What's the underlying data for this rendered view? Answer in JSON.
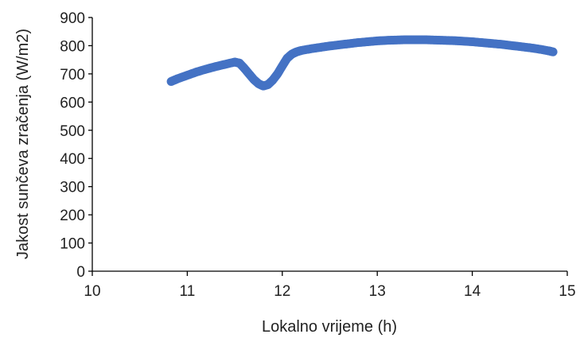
{
  "chart_data": {
    "type": "scatter",
    "title": "",
    "xlabel": "Lokalno vrijeme (h)",
    "ylabel": "Jakost sunčeva zračenja (W/m2)",
    "xlim": [
      10,
      15
    ],
    "ylim": [
      0,
      900
    ],
    "xticks": [
      10,
      11,
      12,
      13,
      14,
      15
    ],
    "yticks": [
      0,
      100,
      200,
      300,
      400,
      500,
      600,
      700,
      800,
      900
    ],
    "grid": false,
    "legend": "none",
    "marker_color": "#4472C4",
    "series": [
      {
        "x": [
          10.83,
          10.9,
          11.0,
          11.1,
          11.2,
          11.3,
          11.4,
          11.5,
          11.55,
          11.6,
          11.65,
          11.7,
          11.75,
          11.8,
          11.85,
          11.9,
          11.95,
          12.0,
          12.05,
          12.1,
          12.15,
          12.2,
          12.3,
          12.4,
          12.5,
          12.6,
          12.7,
          12.8,
          12.9,
          13.0,
          13.1,
          13.2,
          13.3,
          13.4,
          13.5,
          13.6,
          13.7,
          13.8,
          13.9,
          14.0,
          14.1,
          14.2,
          14.3,
          14.4,
          14.5,
          14.6,
          14.7,
          14.8,
          14.85
        ],
        "y": [
          673,
          683,
          695,
          707,
          717,
          726,
          734,
          742,
          738,
          720,
          700,
          680,
          665,
          657,
          662,
          678,
          700,
          728,
          755,
          770,
          778,
          783,
          789,
          794,
          799,
          803,
          807,
          811,
          814,
          817,
          819,
          820,
          821,
          821,
          821,
          820,
          819,
          818,
          816,
          814,
          811,
          808,
          805,
          801,
          797,
          793,
          788,
          782,
          778
        ]
      }
    ]
  }
}
